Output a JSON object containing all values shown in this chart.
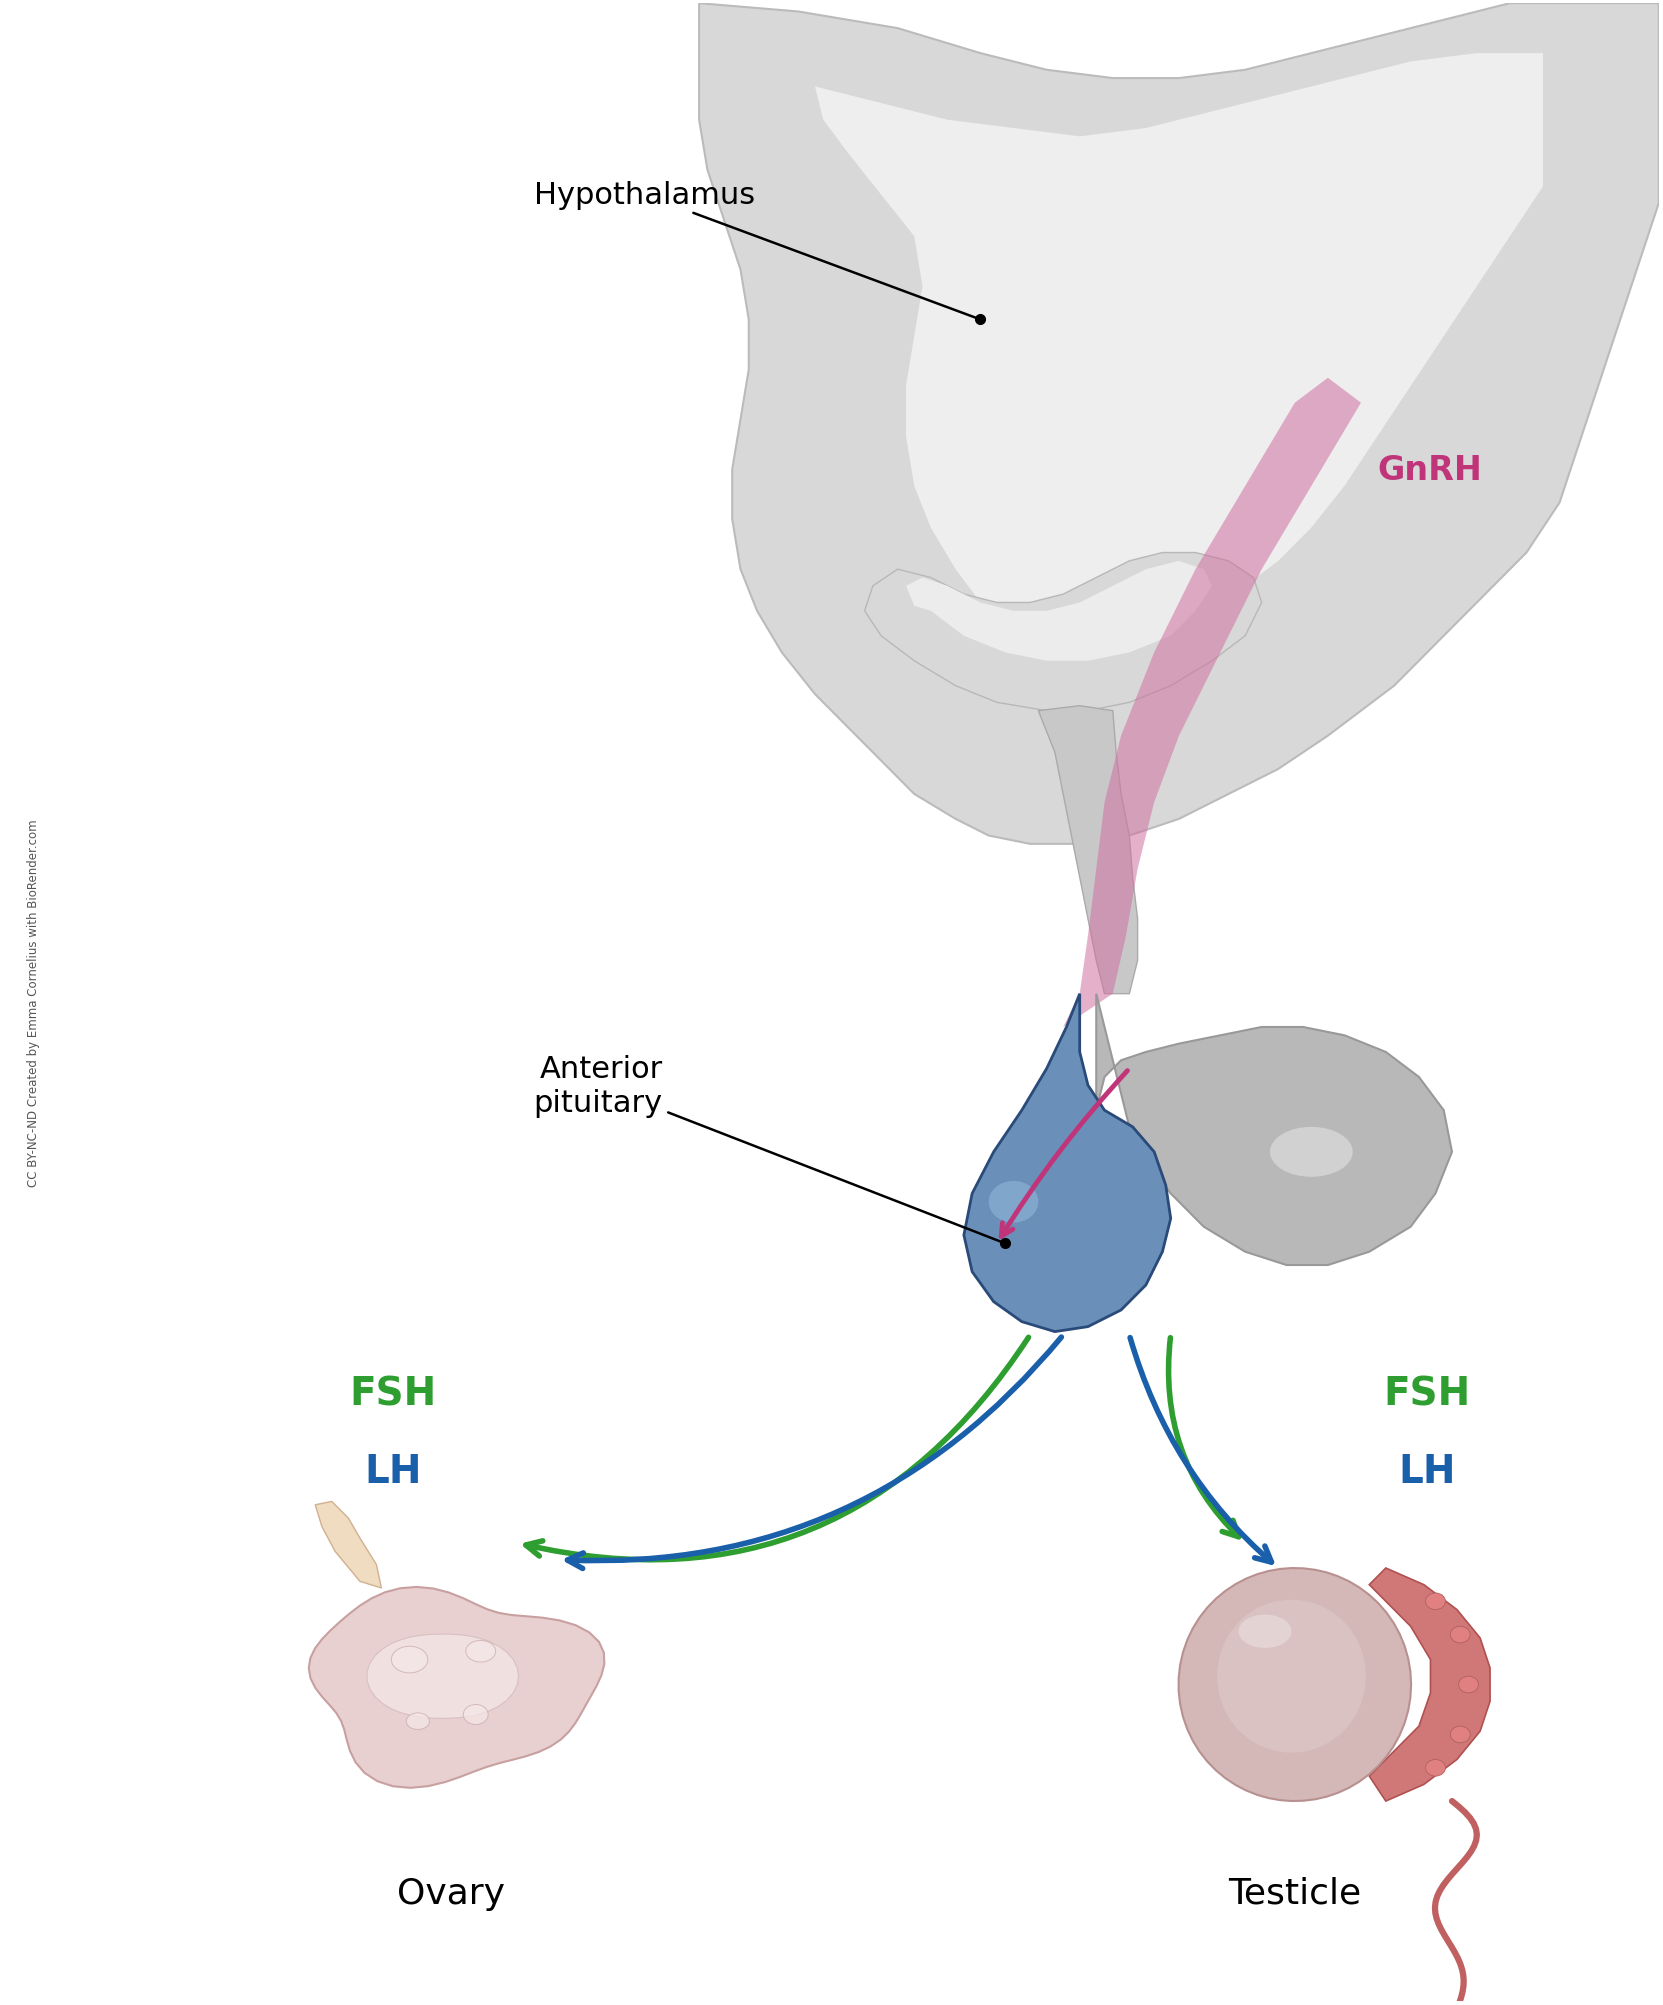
{
  "background_color": "#ffffff",
  "fig_width": 16.63,
  "fig_height": 20.06,
  "hypothalamus_label": "Hypothalamus",
  "pituitary_label": "Anterior\npituitary",
  "gnrh_label": "GnRH",
  "fsh_label": "FSH",
  "lh_label": "LH",
  "ovary_label": "Ovary",
  "testicle_label": "Testicle",
  "credit_text": "CC BY-NC-ND Created by Emma Cornelius with BioRender.com",
  "fsh_color": "#2e9e30",
  "lh_color": "#1a5faa",
  "gnrh_color": "#c0357a",
  "arrow_green": "#2e9e30",
  "arrow_blue": "#1a5faa",
  "brain_outer_fill": "#d8d8d8",
  "brain_outer_edge": "#bbbbbb",
  "brain_inner_fill": "#eeeeee",
  "brain_arch_fill": "#e8e8e8",
  "hypothalamus_fill": "#d0d0d0",
  "stalk_fill": "#c8c8c8",
  "posterior_fill": "#b8b8b8",
  "posterior_edge": "#999999",
  "anterior_fill": "#6a90ba",
  "anterior_edge": "#2a4a7a",
  "gnrh_stripe_fill": "#d070a0",
  "ovary_fill": "#e8d0d0",
  "ovary_inner": "#f0e0e0",
  "ovary_edge": "#c8a0a0",
  "ovary_stem_fill": "#f0dcc0",
  "ovary_stem_edge": "#d0b090",
  "testicle_fill": "#d4b8b8",
  "testicle_edge": "#b89090",
  "epi_fill": "#d07878",
  "epi_edge": "#b05050",
  "vas_color": "#c06060"
}
